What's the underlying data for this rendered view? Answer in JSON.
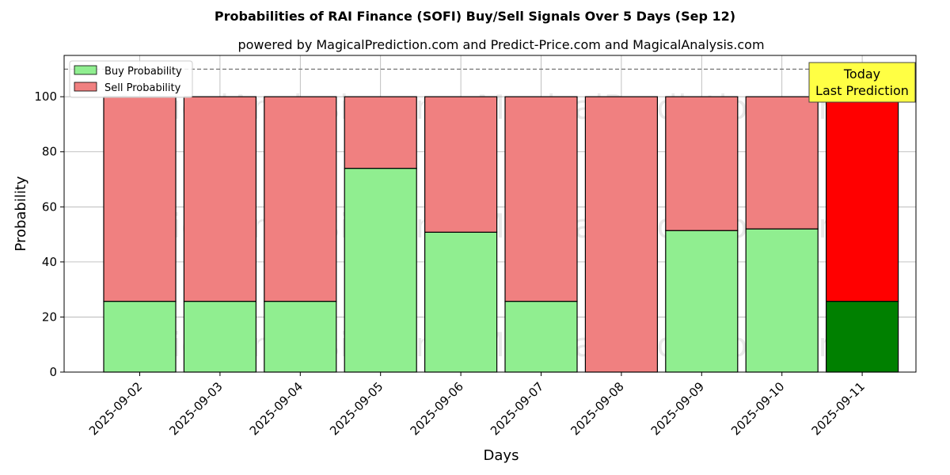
{
  "chart_data": {
    "type": "bar",
    "stacked": true,
    "title": "Probabilities of RAI Finance (SOFI) Buy/Sell Signals Over 5 Days (Sep 12)",
    "subtitle": "powered by MagicalPrediction.com and Predict-Price.com and MagicalAnalysis.com",
    "xlabel": "Days",
    "ylabel": "Probability",
    "ylim": [
      0,
      115
    ],
    "yticks": [
      0,
      20,
      40,
      60,
      80,
      100
    ],
    "grid": true,
    "reference_line": 110,
    "legend_position": "top-left",
    "categories": [
      "2025-09-02",
      "2025-09-03",
      "2025-09-04",
      "2025-09-05",
      "2025-09-06",
      "2025-09-07",
      "2025-09-08",
      "2025-09-09",
      "2025-09-10",
      "2025-09-11"
    ],
    "series": [
      {
        "name": "Buy Probability",
        "values": [
          25.7,
          25.7,
          25.7,
          74.0,
          50.8,
          25.7,
          0.0,
          51.4,
          52.0,
          25.7
        ]
      },
      {
        "name": "Sell Probability",
        "values": [
          74.3,
          74.3,
          74.3,
          26.0,
          49.2,
          74.3,
          100.0,
          48.6,
          48.0,
          74.3
        ]
      }
    ],
    "highlight_index": 9,
    "annotation": {
      "line1": "Today",
      "line2": "Last Prediction"
    },
    "watermarks": [
      "MagicalAnalysis.com",
      "MagicalPrediction.com"
    ]
  },
  "colors": {
    "buy": "#90ee90",
    "sell": "#f08080",
    "buy_today": "#008000",
    "sell_today": "#ff0000",
    "annotation_bg": "#ffff44"
  }
}
